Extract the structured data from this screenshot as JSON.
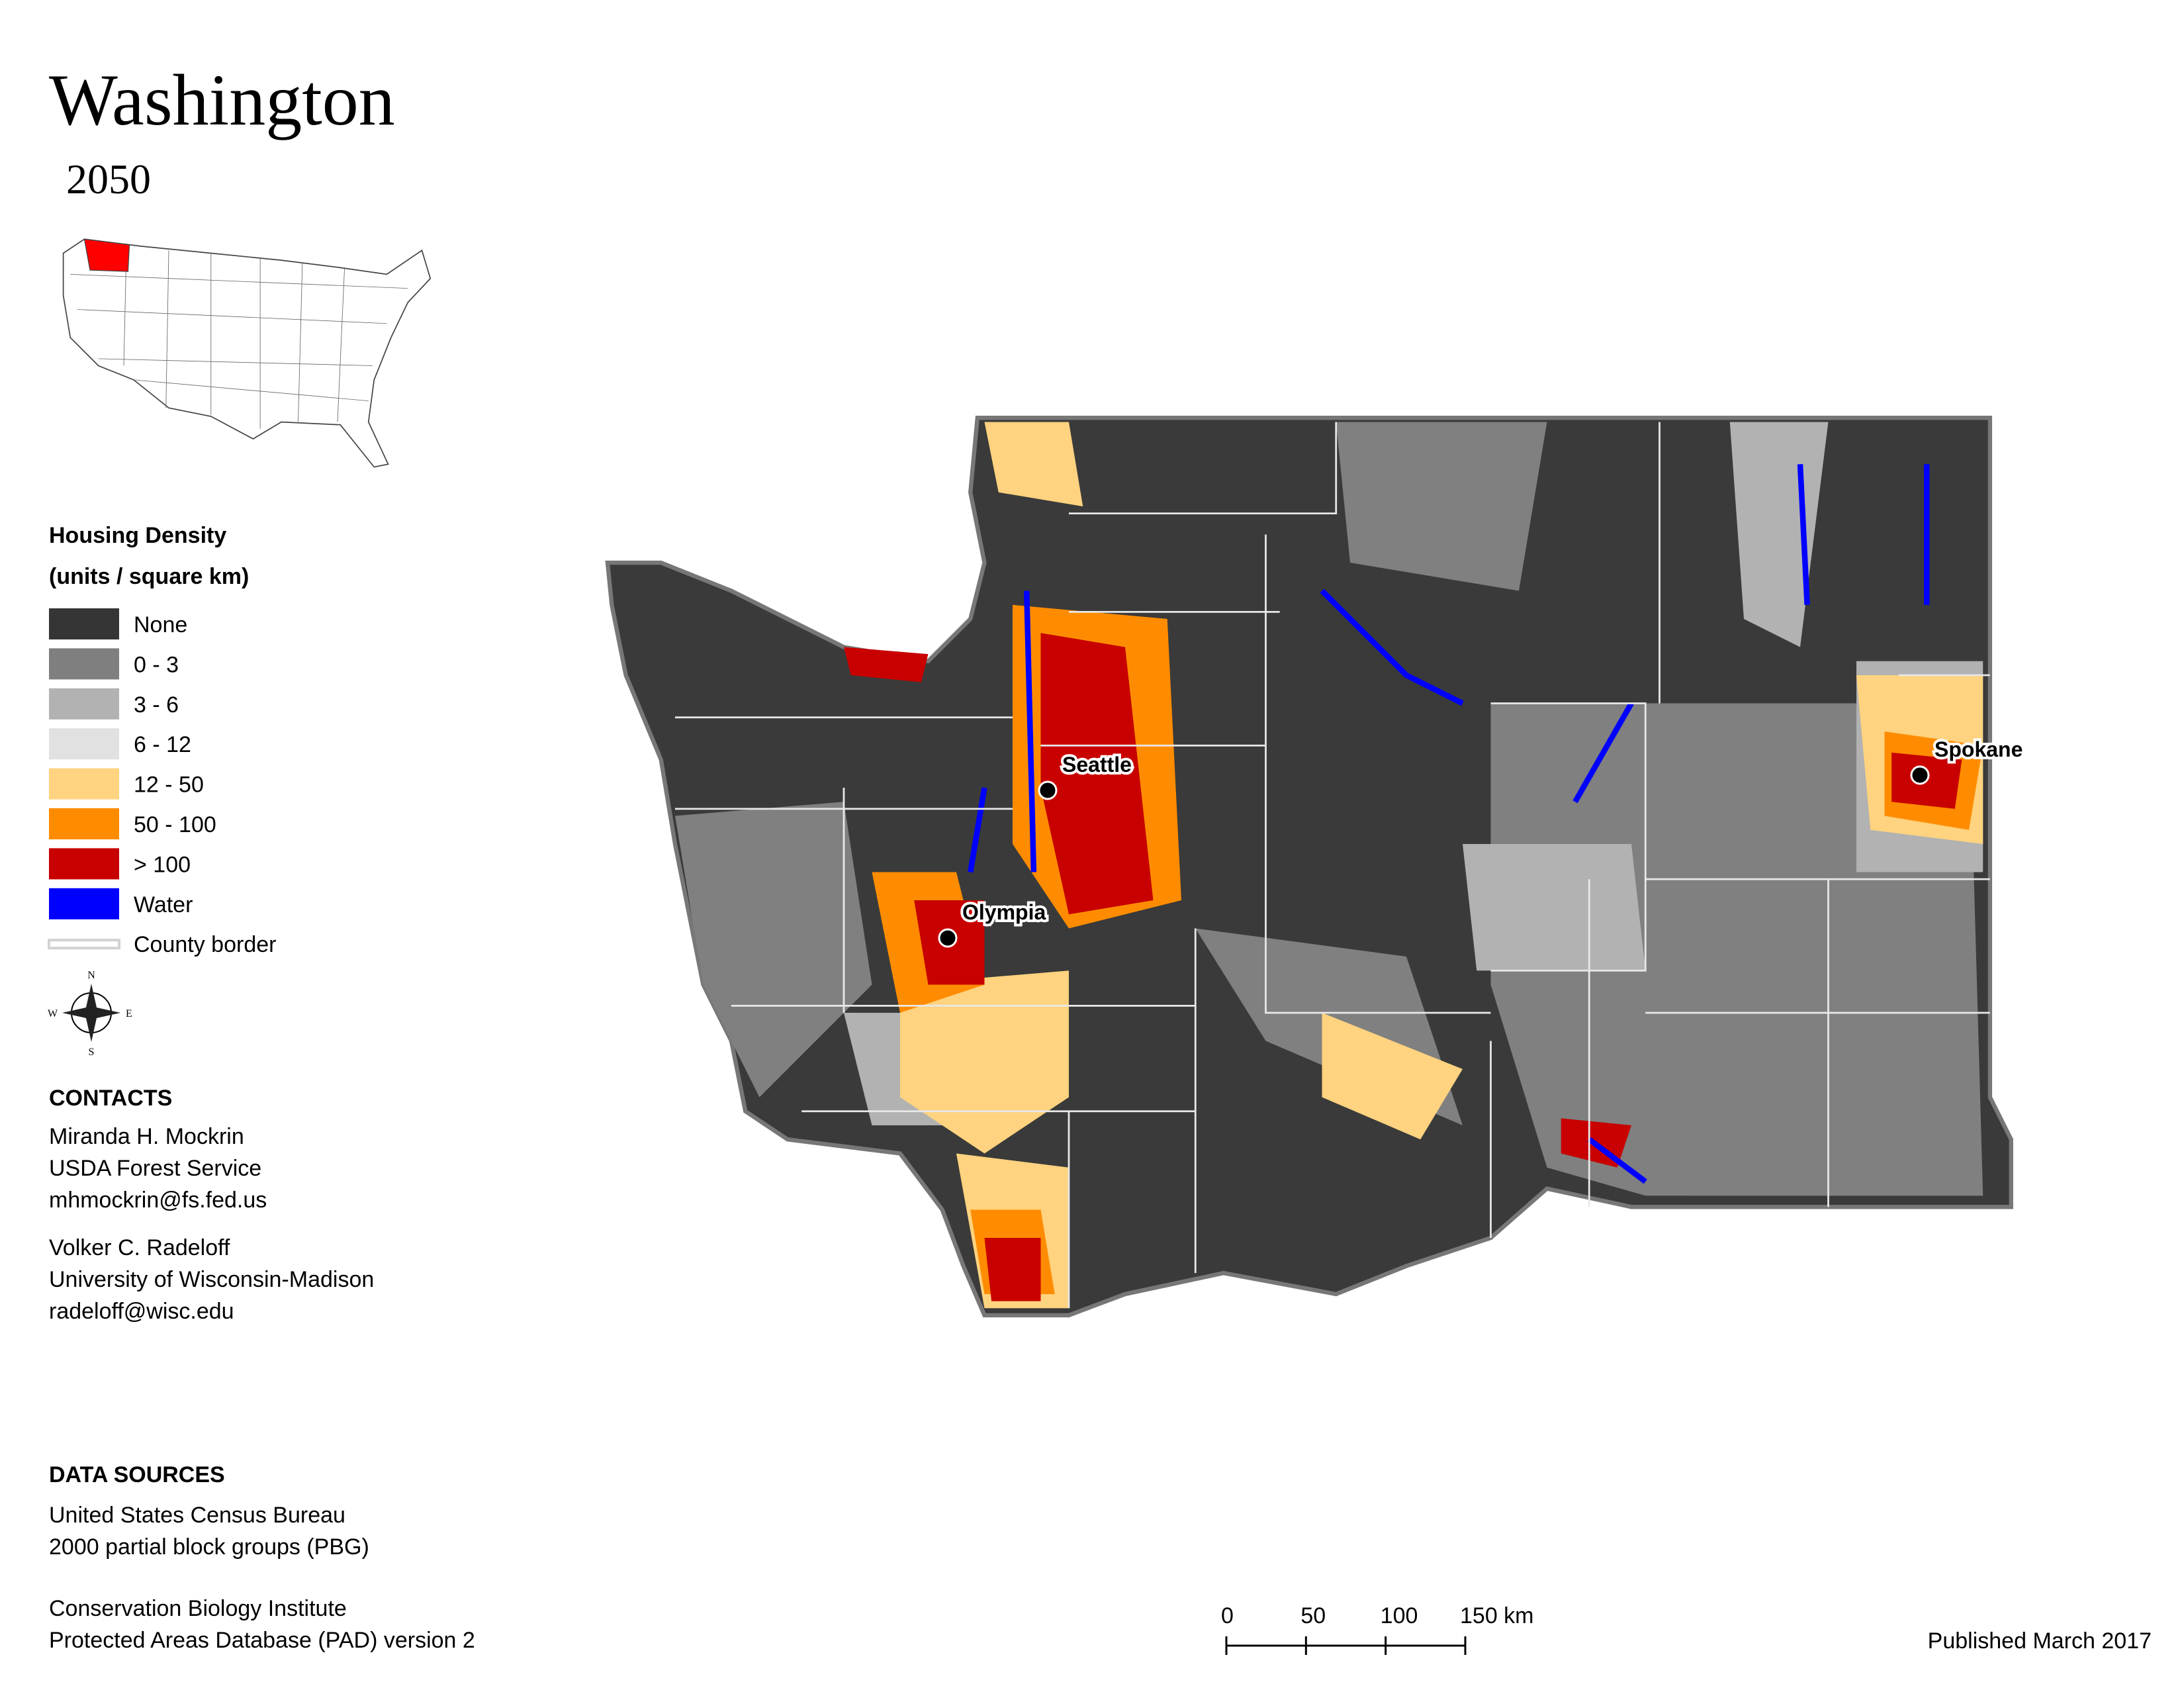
{
  "title": "Washington",
  "subtitle": "2050",
  "legend": {
    "title": "Housing Density",
    "subtitle": "(units / square km)",
    "items": [
      {
        "label": "None",
        "color": "#353535"
      },
      {
        "label": "0 - 3",
        "color": "#7f7f7f"
      },
      {
        "label": "3 - 6",
        "color": "#b2b2b2"
      },
      {
        "label": "6 - 12",
        "color": "#e1e1e1"
      },
      {
        "label": "12 - 50",
        "color": "#ffd37f"
      },
      {
        "label": "50 - 100",
        "color": "#ff8c00"
      },
      {
        "label": "> 100",
        "color": "#c80000"
      },
      {
        "label": "Water",
        "color": "#0000ff"
      }
    ],
    "border_item": {
      "label": "County border",
      "color": "#d2d2d2"
    }
  },
  "compass": {
    "n": "N",
    "e": "E",
    "s": "S",
    "w": "W"
  },
  "cities": [
    {
      "name": "Seattle"
    },
    {
      "name": "Olympia"
    },
    {
      "name": "Spokane"
    }
  ],
  "contacts": {
    "heading": "CONTACTS",
    "people": [
      [
        "Miranda H. Mockrin",
        "USDA Forest Service",
        "mhmockrin@fs.fed.us"
      ],
      [
        "Volker C. Radeloff",
        "University of Wisconsin-Madison",
        "radeloff@wisc.edu"
      ]
    ]
  },
  "data_sources": {
    "heading": "DATA SOURCES",
    "sources": [
      [
        "United States Census Bureau",
        "2000 partial block groups (PBG)"
      ],
      [
        "Conservation Biology Institute",
        "Protected Areas Database (PAD) version 2"
      ]
    ]
  },
  "scale": {
    "ticks": [
      0,
      50,
      100,
      {
        "value": 150,
        "label": "150 km"
      }
    ]
  },
  "published": "Published March 2017"
}
